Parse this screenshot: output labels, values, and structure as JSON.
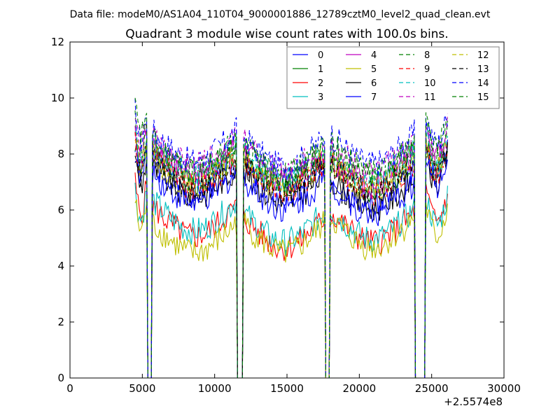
{
  "figure": {
    "suptitle": "Data file: modeM0/AS1A04_110T04_9000001886_12789cztM0_level2_quad_clean.evt"
  },
  "chart_data": {
    "type": "line",
    "title": "Quadrant 3 module wise count rates with 100.0s bins.",
    "xlabel": "",
    "ylabel": "",
    "xlim": [
      0,
      30000
    ],
    "ylim": [
      0,
      12
    ],
    "x_ticks": [
      0,
      5000,
      10000,
      15000,
      20000,
      25000,
      30000
    ],
    "y_ticks": [
      0,
      2,
      4,
      6,
      8,
      10,
      12
    ],
    "x_offset_label": "+2.5574e8",
    "grid": false,
    "legend": {
      "position": "top-right",
      "columns": 4
    },
    "segments": [
      [
        4500,
        5300
      ],
      [
        5700,
        11500
      ],
      [
        12000,
        17600
      ],
      [
        18000,
        23800
      ],
      [
        24600,
        26100
      ]
    ],
    "drops": [
      5500,
      11750,
      17800,
      24200
    ],
    "series": [
      {
        "name": "0",
        "color": "#0000ff",
        "dash": "solid",
        "segment_levels": [
          7.6,
          7.0,
          6.8,
          6.6,
          7.6
        ]
      },
      {
        "name": "1",
        "color": "#008000",
        "dash": "solid",
        "segment_levels": [
          7.8,
          7.4,
          7.2,
          7.0,
          7.8
        ]
      },
      {
        "name": "2",
        "color": "#ff0000",
        "dash": "solid",
        "segment_levels": [
          6.2,
          5.4,
          5.0,
          5.2,
          5.9
        ]
      },
      {
        "name": "3",
        "color": "#00bfbf",
        "dash": "solid",
        "segment_levels": [
          6.0,
          5.6,
          5.2,
          5.3,
          5.8
        ]
      },
      {
        "name": "4",
        "color": "#bf00bf",
        "dash": "solid",
        "segment_levels": [
          8.2,
          7.6,
          7.4,
          7.2,
          8.0
        ]
      },
      {
        "name": "5",
        "color": "#bfbf00",
        "dash": "solid",
        "segment_levels": [
          5.6,
          4.8,
          4.8,
          5.0,
          5.4
        ]
      },
      {
        "name": "6",
        "color": "#000000",
        "dash": "solid",
        "segment_levels": [
          7.2,
          6.8,
          6.6,
          6.4,
          7.2
        ]
      },
      {
        "name": "7",
        "color": "#0000ff",
        "dash": "solid",
        "segment_levels": [
          7.4,
          6.6,
          6.4,
          6.2,
          7.2
        ]
      },
      {
        "name": "8",
        "color": "#008000",
        "dash": "dashed",
        "segment_levels": [
          8.4,
          7.8,
          7.6,
          7.6,
          8.2
        ]
      },
      {
        "name": "9",
        "color": "#ff0000",
        "dash": "dashed",
        "segment_levels": [
          7.8,
          7.2,
          7.0,
          7.0,
          7.6
        ]
      },
      {
        "name": "10",
        "color": "#00bfbf",
        "dash": "dashed",
        "segment_levels": [
          8.0,
          7.6,
          7.4,
          7.4,
          7.9
        ]
      },
      {
        "name": "11",
        "color": "#bf00bf",
        "dash": "dashed",
        "segment_levels": [
          8.6,
          7.9,
          7.7,
          7.7,
          8.3
        ]
      },
      {
        "name": "12",
        "color": "#bfbf00",
        "dash": "dashed",
        "segment_levels": [
          8.0,
          7.2,
          7.1,
          7.1,
          7.8
        ]
      },
      {
        "name": "13",
        "color": "#000000",
        "dash": "dashed",
        "segment_levels": [
          7.6,
          7.1,
          7.0,
          7.0,
          7.5
        ]
      },
      {
        "name": "14",
        "color": "#0000ff",
        "dash": "dashed",
        "segment_levels": [
          8.8,
          8.1,
          7.9,
          8.0,
          8.7
        ]
      },
      {
        "name": "15",
        "color": "#008000",
        "dash": "dashed",
        "segment_levels": [
          9.0,
          7.7,
          7.6,
          7.7,
          8.6
        ]
      }
    ]
  }
}
